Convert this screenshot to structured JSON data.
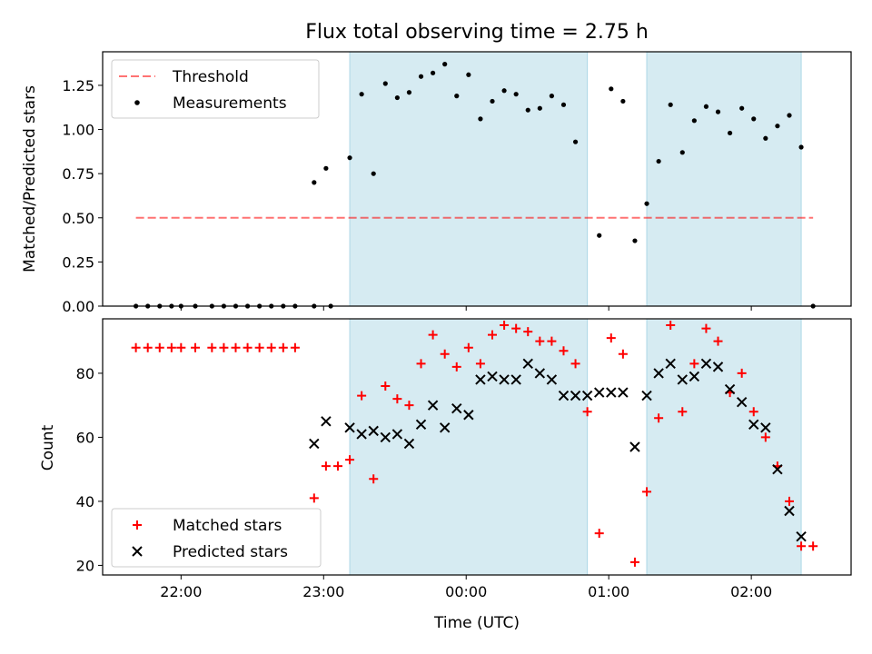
{
  "title": "Flux total observing time = 2.75 h",
  "colors": {
    "band": "#add8e6",
    "threshold": "#ff0000",
    "measurement": "#000000",
    "matched": "#ff0000",
    "predicted": "#000000"
  },
  "chart_data": [
    {
      "type": "scatter",
      "panel": "top",
      "ylabel": "Matched/Predicted stars",
      "xlabel": "",
      "x_unit": "minutes after 22:00 UTC",
      "xlim": [
        -33,
        282
      ],
      "ylim": [
        0.0,
        1.44
      ],
      "yticks": [
        0.0,
        0.25,
        0.5,
        0.75,
        1.0,
        1.25
      ],
      "yticklabels": [
        "0.00",
        "0.25",
        "0.50",
        "0.75",
        "1.00",
        "1.25"
      ],
      "xticks": [
        0,
        60,
        120,
        180,
        240
      ],
      "show_xticklabels": false,
      "shaded_intervals": [
        [
          71,
          171
        ],
        [
          196,
          261
        ]
      ],
      "legend": {
        "position": "upper left",
        "entries": [
          "Threshold",
          "Measurements"
        ]
      },
      "threshold": {
        "name": "Threshold",
        "value": 0.5,
        "x_range": [
          -19,
          266
        ]
      },
      "series": [
        {
          "name": "Measurements",
          "marker": "dot",
          "points": [
            [
              -19,
              0
            ],
            [
              -14,
              0
            ],
            [
              -9,
              0
            ],
            [
              -4,
              0
            ],
            [
              0,
              0
            ],
            [
              6,
              0
            ],
            [
              13,
              0
            ],
            [
              18,
              0
            ],
            [
              23,
              0
            ],
            [
              28,
              0
            ],
            [
              33,
              0
            ],
            [
              38,
              0
            ],
            [
              43,
              0
            ],
            [
              48,
              0
            ],
            [
              56,
              0
            ],
            [
              63,
              0
            ],
            [
              56,
              0.7
            ],
            [
              61,
              0.78
            ],
            [
              71,
              0.84
            ],
            [
              76,
              1.2
            ],
            [
              81,
              0.75
            ],
            [
              86,
              1.26
            ],
            [
              91,
              1.18
            ],
            [
              96,
              1.21
            ],
            [
              101,
              1.3
            ],
            [
              106,
              1.32
            ],
            [
              111,
              1.37
            ],
            [
              116,
              1.19
            ],
            [
              121,
              1.31
            ],
            [
              126,
              1.06
            ],
            [
              131,
              1.16
            ],
            [
              136,
              1.22
            ],
            [
              141,
              1.2
            ],
            [
              146,
              1.11
            ],
            [
              151,
              1.12
            ],
            [
              156,
              1.19
            ],
            [
              161,
              1.14
            ],
            [
              166,
              0.93
            ],
            [
              176,
              0.4
            ],
            [
              181,
              1.23
            ],
            [
              186,
              1.16
            ],
            [
              191,
              0.37
            ],
            [
              196,
              0.58
            ],
            [
              201,
              0.82
            ],
            [
              206,
              1.14
            ],
            [
              211,
              0.87
            ],
            [
              216,
              1.05
            ],
            [
              221,
              1.13
            ],
            [
              226,
              1.1
            ],
            [
              231,
              0.98
            ],
            [
              236,
              1.12
            ],
            [
              241,
              1.06
            ],
            [
              246,
              0.95
            ],
            [
              251,
              1.02
            ],
            [
              256,
              1.08
            ],
            [
              261,
              0.9
            ],
            [
              266,
              0
            ]
          ]
        }
      ]
    },
    {
      "type": "scatter",
      "panel": "bottom",
      "xlabel": "Time (UTC)",
      "ylabel": "Count",
      "x_unit": "minutes after 22:00 UTC",
      "xlim": [
        -33,
        282
      ],
      "ylim": [
        17,
        97
      ],
      "yticks": [
        20,
        40,
        60,
        80
      ],
      "yticklabels": [
        "20",
        "40",
        "60",
        "80"
      ],
      "xticks": [
        0,
        60,
        120,
        180,
        240
      ],
      "xticklabels": [
        "22:00",
        "23:00",
        "00:00",
        "01:00",
        "02:00"
      ],
      "shaded_intervals": [
        [
          71,
          171
        ],
        [
          196,
          261
        ]
      ],
      "legend": {
        "position": "lower left",
        "entries": [
          "Matched stars",
          "Predicted stars"
        ]
      },
      "series": [
        {
          "name": "Matched stars",
          "marker": "plus",
          "points": [
            [
              -19,
              88
            ],
            [
              -14,
              88
            ],
            [
              -9,
              88
            ],
            [
              -4,
              88
            ],
            [
              0,
              88
            ],
            [
              6,
              88
            ],
            [
              13,
              88
            ],
            [
              18,
              88
            ],
            [
              23,
              88
            ],
            [
              28,
              88
            ],
            [
              33,
              88
            ],
            [
              38,
              88
            ],
            [
              43,
              88
            ],
            [
              48,
              88
            ],
            [
              56,
              41
            ],
            [
              61,
              51
            ],
            [
              66,
              51
            ],
            [
              71,
              53
            ],
            [
              76,
              73
            ],
            [
              81,
              47
            ],
            [
              86,
              76
            ],
            [
              91,
              72
            ],
            [
              96,
              70
            ],
            [
              101,
              83
            ],
            [
              106,
              92
            ],
            [
              111,
              86
            ],
            [
              116,
              82
            ],
            [
              121,
              88
            ],
            [
              126,
              83
            ],
            [
              131,
              92
            ],
            [
              136,
              95
            ],
            [
              141,
              94
            ],
            [
              146,
              93
            ],
            [
              151,
              90
            ],
            [
              156,
              90
            ],
            [
              161,
              87
            ],
            [
              166,
              83
            ],
            [
              171,
              68
            ],
            [
              176,
              30
            ],
            [
              181,
              91
            ],
            [
              186,
              86
            ],
            [
              191,
              21
            ],
            [
              196,
              43
            ],
            [
              201,
              66
            ],
            [
              206,
              95
            ],
            [
              211,
              68
            ],
            [
              216,
              83
            ],
            [
              221,
              94
            ],
            [
              226,
              90
            ],
            [
              231,
              74
            ],
            [
              236,
              80
            ],
            [
              241,
              68
            ],
            [
              246,
              60
            ],
            [
              251,
              51
            ],
            [
              256,
              40
            ],
            [
              261,
              26
            ],
            [
              266,
              26
            ]
          ]
        },
        {
          "name": "Predicted stars",
          "marker": "x",
          "points": [
            [
              56,
              58
            ],
            [
              61,
              65
            ],
            [
              71,
              63
            ],
            [
              76,
              61
            ],
            [
              81,
              62
            ],
            [
              86,
              60
            ],
            [
              91,
              61
            ],
            [
              96,
              58
            ],
            [
              101,
              64
            ],
            [
              106,
              70
            ],
            [
              111,
              63
            ],
            [
              116,
              69
            ],
            [
              121,
              67
            ],
            [
              126,
              78
            ],
            [
              131,
              79
            ],
            [
              136,
              78
            ],
            [
              141,
              78
            ],
            [
              146,
              83
            ],
            [
              151,
              80
            ],
            [
              156,
              78
            ],
            [
              161,
              73
            ],
            [
              166,
              73
            ],
            [
              171,
              73
            ],
            [
              176,
              74
            ],
            [
              181,
              74
            ],
            [
              186,
              74
            ],
            [
              191,
              57
            ],
            [
              196,
              73
            ],
            [
              201,
              80
            ],
            [
              206,
              83
            ],
            [
              211,
              78
            ],
            [
              216,
              79
            ],
            [
              221,
              83
            ],
            [
              226,
              82
            ],
            [
              231,
              75
            ],
            [
              236,
              71
            ],
            [
              241,
              64
            ],
            [
              246,
              63
            ],
            [
              251,
              50
            ],
            [
              256,
              37
            ],
            [
              261,
              29
            ]
          ]
        }
      ]
    }
  ]
}
